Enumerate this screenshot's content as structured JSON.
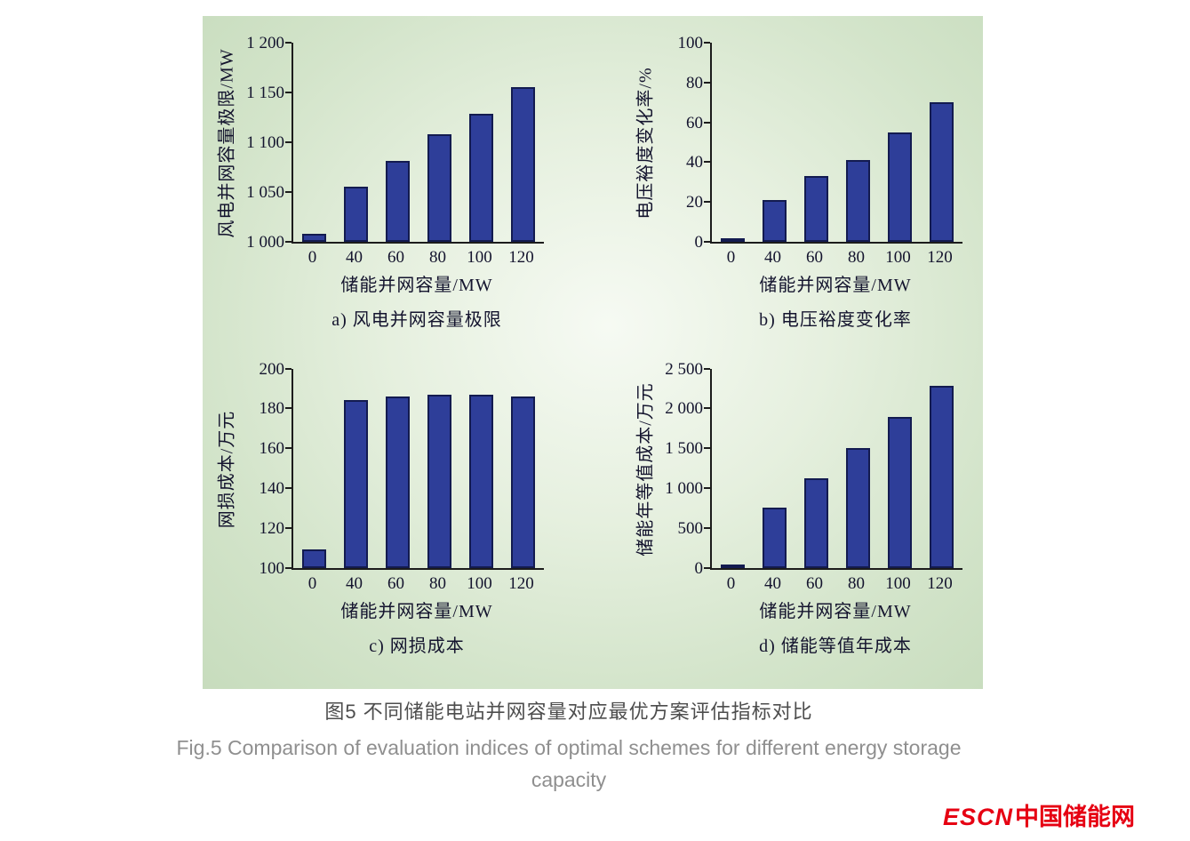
{
  "figure": {
    "caption_cn": "图5  不同储能电站并网容量对应最优方案评估指标对比",
    "caption_en_line1": "Fig.5  Comparison of evaluation indices of optimal schemes for different energy storage",
    "caption_en_line2": "capacity",
    "logo_escn": "ESCN",
    "logo_cn": "中国储能网"
  },
  "colors": {
    "bar_fill": "#2e3e99",
    "bar_edge": "#131b50",
    "panel_green": "#cfe2c6",
    "logo_red": "#e60012"
  },
  "chart_data": [
    {
      "id": "a",
      "type": "bar",
      "title": "a) 风电并网容量极限",
      "xlabel": "储能并网容量/MW",
      "ylabel": "风电并网容量极限/MW",
      "categories": [
        "0",
        "40",
        "60",
        "80",
        "100",
        "120"
      ],
      "values": [
        1008,
        1055,
        1081,
        1108,
        1129,
        1155
      ],
      "ylim": [
        1000,
        1200
      ],
      "yticks": [
        1000,
        1050,
        1100,
        1150,
        1200
      ],
      "ytick_labels": [
        "1 000",
        "1 050",
        "1 100",
        "1 150",
        "1 200"
      ],
      "grid": false,
      "legend": "none"
    },
    {
      "id": "b",
      "type": "bar",
      "title": "b) 电压裕度变化率",
      "xlabel": "储能并网容量/MW",
      "ylabel": "电压裕度变化率/%",
      "categories": [
        "0",
        "40",
        "60",
        "80",
        "100",
        "120"
      ],
      "values": [
        1,
        21,
        33,
        41,
        55,
        70
      ],
      "ylim": [
        0,
        100
      ],
      "yticks": [
        0,
        20,
        40,
        60,
        80,
        100
      ],
      "ytick_labels": [
        "0",
        "20",
        "40",
        "60",
        "80",
        "100"
      ],
      "grid": false,
      "legend": "none"
    },
    {
      "id": "c",
      "type": "bar",
      "title": "c) 网损成本",
      "xlabel": "储能并网容量/MW",
      "ylabel": "网损成本/万元",
      "categories": [
        "0",
        "40",
        "60",
        "80",
        "100",
        "120"
      ],
      "values": [
        109,
        184,
        186,
        187,
        187,
        186
      ],
      "ylim": [
        100,
        200
      ],
      "yticks": [
        100,
        120,
        140,
        160,
        180,
        200
      ],
      "ytick_labels": [
        "100",
        "120",
        "140",
        "160",
        "180",
        "200"
      ],
      "grid": false,
      "legend": "none"
    },
    {
      "id": "d",
      "type": "bar",
      "title": "d) 储能等值年成本",
      "xlabel": "储能并网容量/MW",
      "ylabel": "储能年等值成本/万元",
      "categories": [
        "0",
        "40",
        "60",
        "80",
        "100",
        "120"
      ],
      "values": [
        30,
        750,
        1120,
        1500,
        1890,
        2280
      ],
      "ylim": [
        0,
        2500
      ],
      "yticks": [
        0,
        500,
        1000,
        1500,
        2000,
        2500
      ],
      "ytick_labels": [
        "0",
        "500",
        "1 000",
        "1 500",
        "2 000",
        "2 500"
      ],
      "grid": false,
      "legend": "none"
    }
  ]
}
